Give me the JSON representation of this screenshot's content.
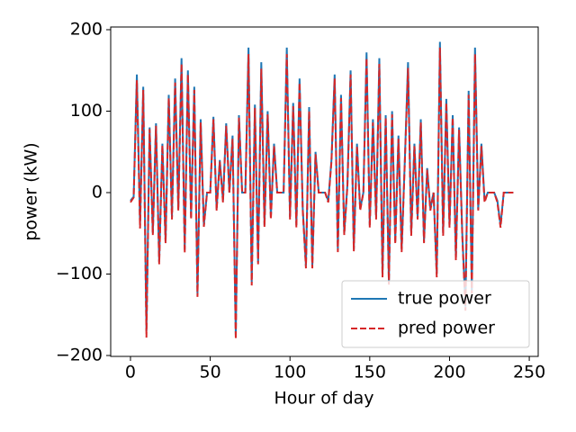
{
  "chart_data": {
    "type": "line",
    "xlabel": "Hour of day",
    "ylabel": "power (kW)",
    "x": [
      0,
      2,
      4,
      6,
      8,
      10,
      12,
      14,
      16,
      18,
      20,
      22,
      24,
      26,
      28,
      30,
      32,
      34,
      36,
      38,
      40,
      42,
      44,
      46,
      48,
      50,
      52,
      54,
      56,
      58,
      60,
      62,
      64,
      66,
      68,
      70,
      72,
      74,
      76,
      78,
      80,
      82,
      84,
      86,
      88,
      90,
      92,
      94,
      96,
      98,
      100,
      102,
      104,
      106,
      108,
      110,
      112,
      114,
      116,
      118,
      120,
      122,
      124,
      126,
      128,
      130,
      132,
      134,
      136,
      138,
      140,
      142,
      144,
      146,
      148,
      150,
      152,
      154,
      156,
      158,
      160,
      162,
      164,
      166,
      168,
      170,
      172,
      174,
      176,
      178,
      180,
      182,
      184,
      186,
      188,
      190,
      192,
      194,
      196,
      198,
      200,
      202,
      204,
      206,
      208,
      210,
      212,
      214,
      216,
      218,
      220,
      222,
      224,
      226,
      228,
      230,
      232,
      234,
      236,
      238,
      240
    ],
    "series": [
      {
        "name": "true power",
        "color": "#1f77b4",
        "dash": false,
        "values": [
          -10,
          -5,
          145,
          -40,
          130,
          -170,
          80,
          -50,
          85,
          -85,
          60,
          -60,
          120,
          -30,
          140,
          -20,
          165,
          -70,
          150,
          -30,
          130,
          -125,
          90,
          -40,
          0,
          0,
          93,
          -20,
          40,
          -10,
          85,
          0,
          70,
          -175,
          95,
          0,
          0,
          178,
          -110,
          108,
          -85,
          160,
          -40,
          100,
          -30,
          60,
          0,
          0,
          0,
          178,
          -30,
          110,
          -40,
          140,
          -20,
          -90,
          105,
          -90,
          50,
          0,
          0,
          0,
          -10,
          40,
          145,
          -70,
          120,
          -50,
          10,
          150,
          -70,
          60,
          -20,
          0,
          172,
          -40,
          90,
          -30,
          165,
          -100,
          95,
          -110,
          100,
          -60,
          70,
          -70,
          40,
          160,
          -50,
          60,
          -30,
          90,
          -60,
          30,
          -20,
          0,
          -100,
          185,
          -50,
          115,
          -40,
          95,
          -80,
          80,
          -50,
          -140,
          125,
          -120,
          178,
          -20,
          60,
          -10,
          0,
          0,
          0,
          -10,
          -40,
          0,
          0,
          0,
          0
        ]
      },
      {
        "name": "pred power",
        "color": "#d62728",
        "dash": true,
        "values": [
          -12,
          -6,
          138,
          -44,
          126,
          -178,
          78,
          -52,
          82,
          -88,
          58,
          -62,
          116,
          -33,
          135,
          -22,
          158,
          -74,
          145,
          -33,
          126,
          -128,
          86,
          -42,
          0,
          0,
          90,
          -22,
          38,
          -12,
          82,
          0,
          66,
          -180,
          92,
          0,
          0,
          170,
          -114,
          104,
          -88,
          152,
          -42,
          96,
          -33,
          57,
          0,
          0,
          0,
          170,
          -33,
          106,
          -43,
          135,
          -22,
          -93,
          100,
          -93,
          47,
          0,
          0,
          0,
          -12,
          38,
          140,
          -73,
          116,
          -52,
          8,
          145,
          -72,
          57,
          -22,
          0,
          165,
          -43,
          86,
          -33,
          158,
          -104,
          92,
          -113,
          96,
          -63,
          66,
          -73,
          38,
          153,
          -53,
          57,
          -33,
          86,
          -62,
          28,
          -22,
          0,
          -104,
          178,
          -53,
          110,
          -43,
          92,
          -83,
          77,
          -53,
          -145,
          120,
          -124,
          170,
          -22,
          57,
          -12,
          0,
          0,
          0,
          -12,
          -43,
          0,
          0,
          0,
          0
        ]
      }
    ],
    "xlim": [
      -12.4,
      255.6
    ],
    "ylim": [
      -201.1,
      203.3
    ],
    "xticks": [
      0,
      50,
      100,
      150,
      200,
      250
    ],
    "yticks": [
      {
        "value": -200,
        "label": "−200"
      },
      {
        "value": -100,
        "label": "−100"
      },
      0,
      100,
      200
    ],
    "legend": "lower right"
  }
}
